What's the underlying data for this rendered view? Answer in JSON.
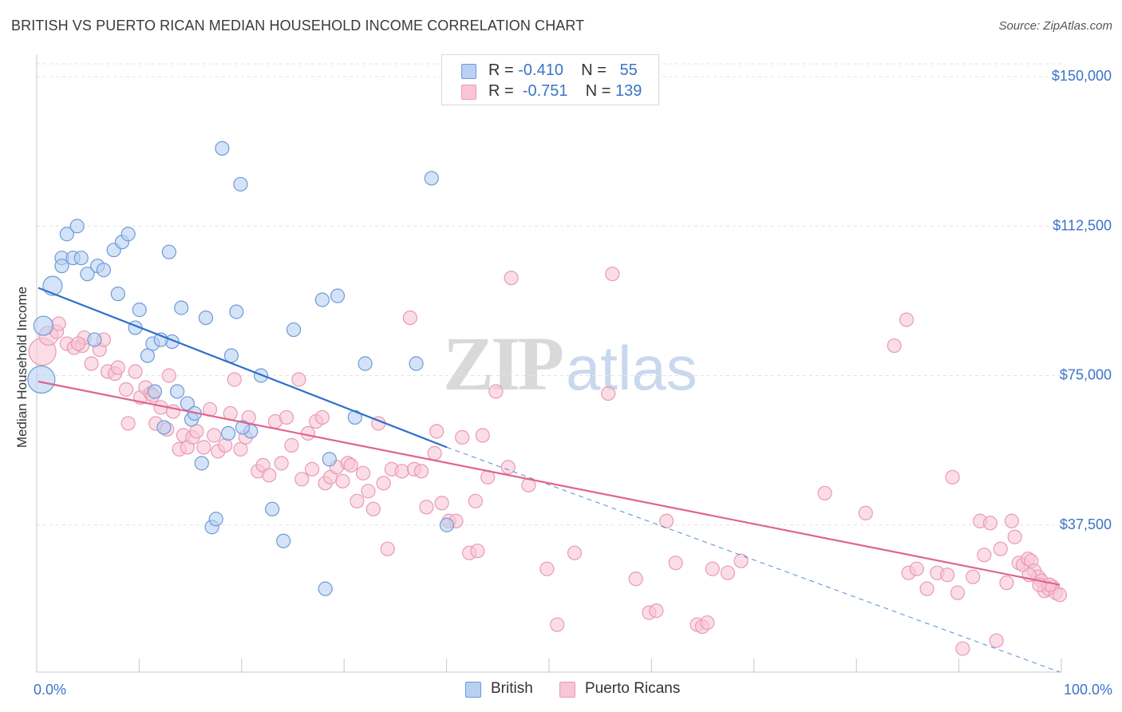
{
  "title": "BRITISH VS PUERTO RICAN MEDIAN HOUSEHOLD INCOME CORRELATION CHART",
  "source": "Source: ZipAtlas.com",
  "watermark": {
    "zip": "ZIP",
    "atlas": "atlas"
  },
  "legend": [
    {
      "r_label": "R = ",
      "r_value": "-0.410",
      "n_label": "N = ",
      "n_value": "55"
    },
    {
      "r_label": "R = ",
      "r_value": "-0.751",
      "n_label": "N = ",
      "n_value": "139"
    }
  ],
  "colors": {
    "british_fill": "#b8d0f2",
    "british_stroke": "#6f9ad8",
    "british_line": "#2f6fcc",
    "pr_fill": "#f8c6d6",
    "pr_stroke": "#e99ab5",
    "pr_line": "#e0648f",
    "tick_label": "#3b74c8",
    "grid": "#e3e3e3"
  },
  "chart_data": {
    "type": "scatter",
    "title": "BRITISH VS PUERTO RICAN MEDIAN HOUSEHOLD INCOME CORRELATION CHART",
    "xlabel": "",
    "ylabel": "Median Household Income",
    "xlim": [
      0,
      100
    ],
    "ylim": [
      0,
      157000
    ],
    "x_tick_labels": [
      "0.0%",
      "100.0%"
    ],
    "y_ticks": [
      {
        "value": 37500,
        "label": "$37,500"
      },
      {
        "value": 75000,
        "label": "$75,000"
      },
      {
        "value": 112500,
        "label": "$112,500"
      },
      {
        "value": 150000,
        "label": "$150,000"
      }
    ],
    "grid": true,
    "legend_position": "top-center",
    "series": [
      {
        "name": "British",
        "r": -0.41,
        "n": 55,
        "trend": {
          "x": [
            0,
            40
          ],
          "y": [
            97000,
            57000
          ],
          "dashed_x": [
            40,
            100
          ],
          "dashed_y": [
            57000,
            -3000
          ]
        },
        "points": [
          {
            "x": 0.3,
            "y": 74000,
            "big": 2
          },
          {
            "x": 0.5,
            "y": 87500,
            "big": 1
          },
          {
            "x": 1.4,
            "y": 97500,
            "big": 1
          },
          {
            "x": 2.3,
            "y": 104500
          },
          {
            "x": 2.3,
            "y": 102500
          },
          {
            "x": 2.8,
            "y": 110500
          },
          {
            "x": 3.4,
            "y": 104500
          },
          {
            "x": 3.8,
            "y": 112500
          },
          {
            "x": 4.2,
            "y": 104500
          },
          {
            "x": 4.8,
            "y": 100500
          },
          {
            "x": 5.8,
            "y": 102500
          },
          {
            "x": 6.4,
            "y": 101500
          },
          {
            "x": 7.4,
            "y": 106500
          },
          {
            "x": 8.2,
            "y": 108500
          },
          {
            "x": 8.8,
            "y": 110500
          },
          {
            "x": 7.8,
            "y": 95500
          },
          {
            "x": 9.5,
            "y": 87000
          },
          {
            "x": 9.9,
            "y": 91500
          },
          {
            "x": 10.7,
            "y": 80000
          },
          {
            "x": 11.2,
            "y": 83000
          },
          {
            "x": 11.4,
            "y": 71000
          },
          {
            "x": 12.3,
            "y": 62000
          },
          {
            "x": 12.8,
            "y": 106000
          },
          {
            "x": 13.1,
            "y": 83500
          },
          {
            "x": 13.6,
            "y": 71000
          },
          {
            "x": 14.0,
            "y": 92000
          },
          {
            "x": 14.6,
            "y": 68000
          },
          {
            "x": 15.0,
            "y": 64000
          },
          {
            "x": 15.3,
            "y": 65500
          },
          {
            "x": 16.0,
            "y": 53000
          },
          {
            "x": 16.4,
            "y": 89500
          },
          {
            "x": 17.0,
            "y": 37000
          },
          {
            "x": 17.4,
            "y": 39000
          },
          {
            "x": 18.0,
            "y": 132000
          },
          {
            "x": 18.6,
            "y": 60500
          },
          {
            "x": 18.9,
            "y": 80000
          },
          {
            "x": 19.4,
            "y": 91000
          },
          {
            "x": 19.8,
            "y": 123000
          },
          {
            "x": 20.8,
            "y": 61000
          },
          {
            "x": 21.8,
            "y": 75000
          },
          {
            "x": 22.9,
            "y": 41500
          },
          {
            "x": 24.0,
            "y": 33500
          },
          {
            "x": 25.0,
            "y": 86500
          },
          {
            "x": 27.8,
            "y": 94000
          },
          {
            "x": 28.1,
            "y": 21500
          },
          {
            "x": 28.5,
            "y": 54000
          },
          {
            "x": 29.3,
            "y": 95000
          },
          {
            "x": 31.0,
            "y": 64500
          },
          {
            "x": 32.0,
            "y": 78000
          },
          {
            "x": 37.0,
            "y": 78000
          },
          {
            "x": 38.5,
            "y": 124500
          },
          {
            "x": 40.0,
            "y": 37500
          },
          {
            "x": 5.5,
            "y": 84000
          },
          {
            "x": 12.0,
            "y": 84000
          },
          {
            "x": 20.0,
            "y": 62000
          }
        ]
      },
      {
        "name": "Puerto Ricans",
        "r": -0.751,
        "n": 139,
        "trend": {
          "x": [
            0,
            100
          ],
          "y": [
            73500,
            22500
          ]
        },
        "points": [
          {
            "x": 0.4,
            "y": 81000,
            "big": 2
          },
          {
            "x": 1.0,
            "y": 85000,
            "big": 1
          },
          {
            "x": 1.8,
            "y": 86000
          },
          {
            "x": 2.0,
            "y": 88000
          },
          {
            "x": 2.8,
            "y": 83000
          },
          {
            "x": 3.5,
            "y": 82000
          },
          {
            "x": 4.3,
            "y": 82500
          },
          {
            "x": 4.5,
            "y": 84500
          },
          {
            "x": 5.2,
            "y": 78000
          },
          {
            "x": 6.0,
            "y": 81500
          },
          {
            "x": 6.4,
            "y": 84000
          },
          {
            "x": 6.8,
            "y": 76000
          },
          {
            "x": 7.5,
            "y": 75500
          },
          {
            "x": 7.8,
            "y": 77000
          },
          {
            "x": 8.6,
            "y": 71500
          },
          {
            "x": 8.8,
            "y": 63000
          },
          {
            "x": 9.5,
            "y": 76000
          },
          {
            "x": 10.0,
            "y": 69500
          },
          {
            "x": 10.5,
            "y": 72000
          },
          {
            "x": 11.0,
            "y": 70500
          },
          {
            "x": 11.2,
            "y": 70000
          },
          {
            "x": 11.5,
            "y": 63000
          },
          {
            "x": 12.0,
            "y": 67000
          },
          {
            "x": 12.6,
            "y": 61500
          },
          {
            "x": 12.8,
            "y": 75000
          },
          {
            "x": 13.2,
            "y": 66000
          },
          {
            "x": 13.8,
            "y": 56500
          },
          {
            "x": 14.2,
            "y": 60000
          },
          {
            "x": 14.6,
            "y": 57000
          },
          {
            "x": 15.1,
            "y": 59500
          },
          {
            "x": 15.5,
            "y": 61000
          },
          {
            "x": 16.2,
            "y": 57000
          },
          {
            "x": 16.8,
            "y": 66500
          },
          {
            "x": 17.2,
            "y": 60000
          },
          {
            "x": 17.6,
            "y": 56000
          },
          {
            "x": 18.3,
            "y": 57500
          },
          {
            "x": 18.8,
            "y": 65500
          },
          {
            "x": 19.2,
            "y": 74000
          },
          {
            "x": 19.8,
            "y": 56500
          },
          {
            "x": 20.3,
            "y": 59500
          },
          {
            "x": 20.6,
            "y": 64500
          },
          {
            "x": 21.5,
            "y": 51000
          },
          {
            "x": 22.0,
            "y": 52500
          },
          {
            "x": 22.6,
            "y": 50000
          },
          {
            "x": 23.2,
            "y": 63500
          },
          {
            "x": 23.8,
            "y": 53000
          },
          {
            "x": 24.3,
            "y": 64500
          },
          {
            "x": 24.8,
            "y": 57500
          },
          {
            "x": 25.5,
            "y": 74000
          },
          {
            "x": 25.8,
            "y": 49000
          },
          {
            "x": 26.4,
            "y": 60500
          },
          {
            "x": 26.8,
            "y": 51500
          },
          {
            "x": 27.2,
            "y": 63500
          },
          {
            "x": 27.8,
            "y": 64500
          },
          {
            "x": 28.1,
            "y": 48000
          },
          {
            "x": 28.6,
            "y": 49500
          },
          {
            "x": 29.2,
            "y": 52000
          },
          {
            "x": 29.8,
            "y": 48500
          },
          {
            "x": 30.3,
            "y": 53000
          },
          {
            "x": 30.6,
            "y": 52500
          },
          {
            "x": 31.2,
            "y": 43500
          },
          {
            "x": 31.8,
            "y": 50500
          },
          {
            "x": 32.3,
            "y": 46000
          },
          {
            "x": 32.8,
            "y": 41500
          },
          {
            "x": 33.3,
            "y": 63000
          },
          {
            "x": 33.8,
            "y": 48000
          },
          {
            "x": 34.2,
            "y": 31500
          },
          {
            "x": 34.6,
            "y": 51500
          },
          {
            "x": 35.6,
            "y": 51000
          },
          {
            "x": 36.4,
            "y": 89500
          },
          {
            "x": 36.8,
            "y": 51500
          },
          {
            "x": 37.5,
            "y": 51000
          },
          {
            "x": 38.0,
            "y": 42000
          },
          {
            "x": 38.8,
            "y": 55500
          },
          {
            "x": 39.0,
            "y": 61000
          },
          {
            "x": 39.5,
            "y": 43000
          },
          {
            "x": 40.2,
            "y": 38500
          },
          {
            "x": 40.9,
            "y": 38500
          },
          {
            "x": 41.5,
            "y": 59500
          },
          {
            "x": 42.2,
            "y": 30500
          },
          {
            "x": 42.8,
            "y": 43500
          },
          {
            "x": 43.0,
            "y": 31000
          },
          {
            "x": 43.5,
            "y": 60000
          },
          {
            "x": 44.0,
            "y": 49500
          },
          {
            "x": 44.8,
            "y": 71000
          },
          {
            "x": 46.0,
            "y": 52000
          },
          {
            "x": 46.3,
            "y": 99500
          },
          {
            "x": 48.0,
            "y": 47500
          },
          {
            "x": 49.8,
            "y": 26500
          },
          {
            "x": 50.8,
            "y": 12500
          },
          {
            "x": 52.5,
            "y": 30500
          },
          {
            "x": 55.8,
            "y": 70500
          },
          {
            "x": 56.2,
            "y": 100500
          },
          {
            "x": 58.5,
            "y": 24000
          },
          {
            "x": 59.8,
            "y": 15500
          },
          {
            "x": 60.5,
            "y": 16000
          },
          {
            "x": 61.5,
            "y": 38500
          },
          {
            "x": 62.4,
            "y": 28000
          },
          {
            "x": 64.5,
            "y": 12500
          },
          {
            "x": 65.0,
            "y": 12000
          },
          {
            "x": 65.5,
            "y": 13000
          },
          {
            "x": 66.0,
            "y": 26500
          },
          {
            "x": 67.5,
            "y": 25500
          },
          {
            "x": 68.8,
            "y": 28500
          },
          {
            "x": 77.0,
            "y": 45500
          },
          {
            "x": 81.0,
            "y": 40500
          },
          {
            "x": 83.8,
            "y": 82500
          },
          {
            "x": 85.0,
            "y": 89000
          },
          {
            "x": 85.2,
            "y": 25500
          },
          {
            "x": 86.0,
            "y": 26500
          },
          {
            "x": 87.0,
            "y": 21500
          },
          {
            "x": 88.0,
            "y": 25500
          },
          {
            "x": 89.0,
            "y": 25000
          },
          {
            "x": 89.5,
            "y": 49500
          },
          {
            "x": 90.0,
            "y": 20500
          },
          {
            "x": 90.5,
            "y": 6500
          },
          {
            "x": 91.5,
            "y": 24500
          },
          {
            "x": 92.2,
            "y": 38500
          },
          {
            "x": 92.6,
            "y": 30000
          },
          {
            "x": 93.2,
            "y": 38000
          },
          {
            "x": 93.8,
            "y": 8500
          },
          {
            "x": 94.2,
            "y": 31500
          },
          {
            "x": 94.8,
            "y": 23000
          },
          {
            "x": 95.3,
            "y": 38500
          },
          {
            "x": 95.6,
            "y": 34500
          },
          {
            "x": 96.0,
            "y": 28000
          },
          {
            "x": 96.4,
            "y": 27500
          },
          {
            "x": 96.9,
            "y": 29000
          },
          {
            "x": 97.2,
            "y": 28500
          },
          {
            "x": 97.5,
            "y": 26000
          },
          {
            "x": 97.9,
            "y": 24500
          },
          {
            "x": 98.2,
            "y": 23500
          },
          {
            "x": 98.5,
            "y": 21000
          },
          {
            "x": 98.9,
            "y": 21500
          },
          {
            "x": 99.3,
            "y": 22000
          },
          {
            "x": 99.6,
            "y": 20500
          },
          {
            "x": 100.0,
            "y": 20000
          },
          {
            "x": 99.0,
            "y": 22500
          },
          {
            "x": 98.0,
            "y": 22500
          },
          {
            "x": 97.0,
            "y": 25000
          },
          {
            "x": 3.9,
            "y": 83000
          }
        ]
      }
    ]
  }
}
